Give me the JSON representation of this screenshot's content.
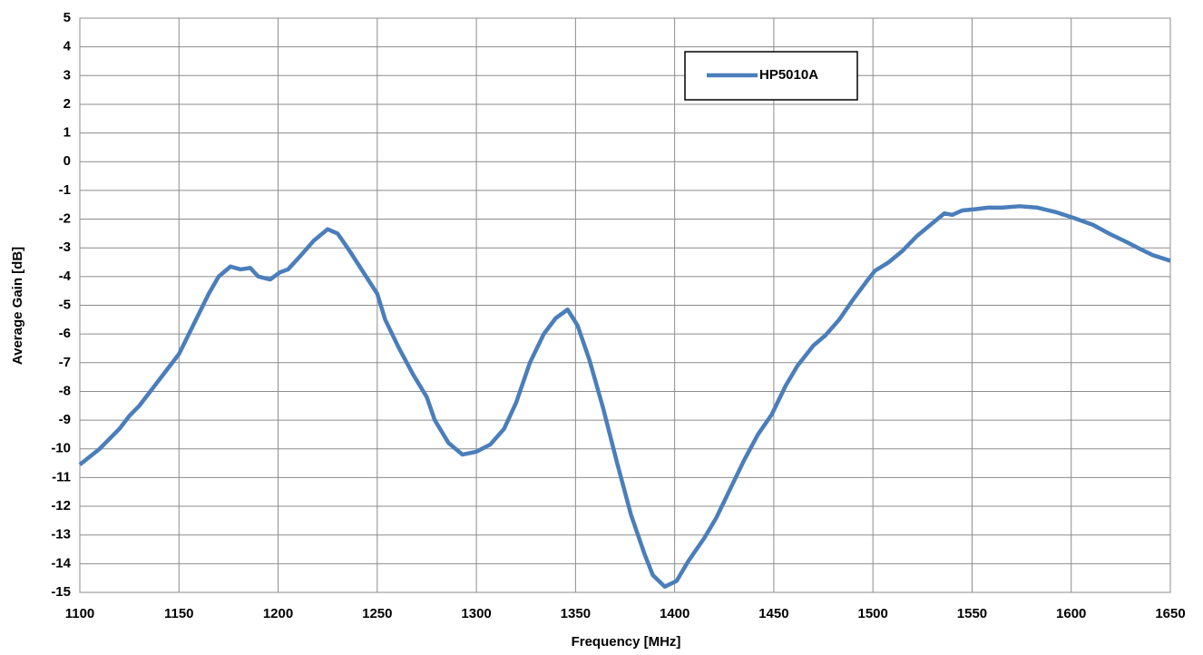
{
  "chart_data": {
    "type": "line",
    "x_label": "Frequency [MHz]",
    "y_label": "Average Gain [dB]",
    "xlim": [
      1100,
      1650
    ],
    "xticks": [
      1100,
      1150,
      1200,
      1250,
      1300,
      1350,
      1400,
      1450,
      1500,
      1550,
      1600,
      1650
    ],
    "ylim": [
      -15,
      5
    ],
    "yticks": [
      -15,
      -14,
      -13,
      -12,
      -11,
      -10,
      -9,
      -8,
      -7,
      -6,
      -5,
      -4,
      -3,
      -2,
      -1,
      0,
      1,
      2,
      3,
      4,
      5
    ],
    "grid": true,
    "legend": "upper center",
    "x": [
      1100,
      1110,
      1120,
      1125,
      1130,
      1140,
      1150,
      1160,
      1165,
      1170,
      1176,
      1181,
      1186,
      1190,
      1196,
      1201,
      1205,
      1211,
      1218,
      1225,
      1230,
      1236,
      1243,
      1250,
      1254,
      1261,
      1268,
      1275,
      1279,
      1286,
      1293,
      1300,
      1307,
      1314,
      1320,
      1327,
      1334,
      1340,
      1346,
      1351,
      1357,
      1364,
      1371,
      1378,
      1385,
      1389,
      1395,
      1401,
      1407,
      1415,
      1421,
      1428,
      1435,
      1442,
      1449,
      1456,
      1462,
      1470,
      1476,
      1483,
      1490,
      1497,
      1501,
      1508,
      1515,
      1522,
      1529,
      1536,
      1540,
      1545,
      1552,
      1558,
      1565,
      1574,
      1583,
      1592,
      1601,
      1611,
      1619,
      1628,
      1635,
      1641,
      1650
    ],
    "series": [
      {
        "name": "HP5010A",
        "color": "#4a7ebb",
        "values": [
          -10.55,
          -10.0,
          -9.3,
          -8.85,
          -8.5,
          -7.6,
          -6.7,
          -5.3,
          -4.6,
          -4.0,
          -3.65,
          -3.75,
          -3.7,
          -4.0,
          -4.1,
          -3.85,
          -3.75,
          -3.3,
          -2.75,
          -2.35,
          -2.5,
          -3.1,
          -3.85,
          -4.6,
          -5.5,
          -6.5,
          -7.4,
          -8.2,
          -9.0,
          -9.8,
          -10.2,
          -10.1,
          -9.85,
          -9.3,
          -8.4,
          -7.0,
          -6.0,
          -5.45,
          -5.15,
          -5.7,
          -6.9,
          -8.6,
          -10.5,
          -12.3,
          -13.7,
          -14.4,
          -14.8,
          -14.6,
          -13.9,
          -13.1,
          -12.4,
          -11.4,
          -10.4,
          -9.5,
          -8.8,
          -7.8,
          -7.1,
          -6.4,
          -6.05,
          -5.5,
          -4.8,
          -4.15,
          -3.8,
          -3.5,
          -3.1,
          -2.6,
          -2.2,
          -1.8,
          -1.85,
          -1.7,
          -1.65,
          -1.6,
          -1.6,
          -1.55,
          -1.6,
          -1.75,
          -1.95,
          -2.2,
          -2.5,
          -2.8,
          -3.05,
          -3.25,
          -3.45
        ]
      }
    ]
  }
}
